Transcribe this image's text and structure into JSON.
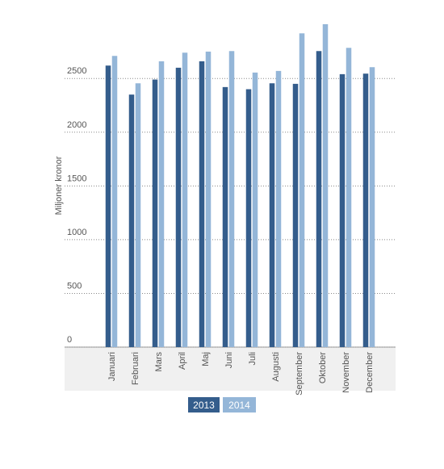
{
  "chart_data": {
    "type": "bar",
    "y_label": "Miljoner kronor",
    "categories": [
      "Januari",
      "Februari",
      "Mars",
      "April",
      "Maj",
      "Juni",
      "Juli",
      "Augusti",
      "September",
      "Oktober",
      "November",
      "December"
    ],
    "series": [
      {
        "name": "2013",
        "color": "#345d8c",
        "values": [
          2620,
          2350,
          2490,
          2600,
          2660,
          2420,
          2400,
          2455,
          2450,
          2755,
          2540,
          2545
        ]
      },
      {
        "name": "2014",
        "color": "#94b6d8",
        "values": [
          2710,
          2455,
          2660,
          2740,
          2750,
          2755,
          2555,
          2570,
          2920,
          3005,
          2785,
          2605
        ]
      }
    ],
    "ylim": [
      0,
      3080
    ],
    "yticks": [
      0,
      500,
      1000,
      1500,
      2000,
      2500
    ],
    "grid": true
  }
}
